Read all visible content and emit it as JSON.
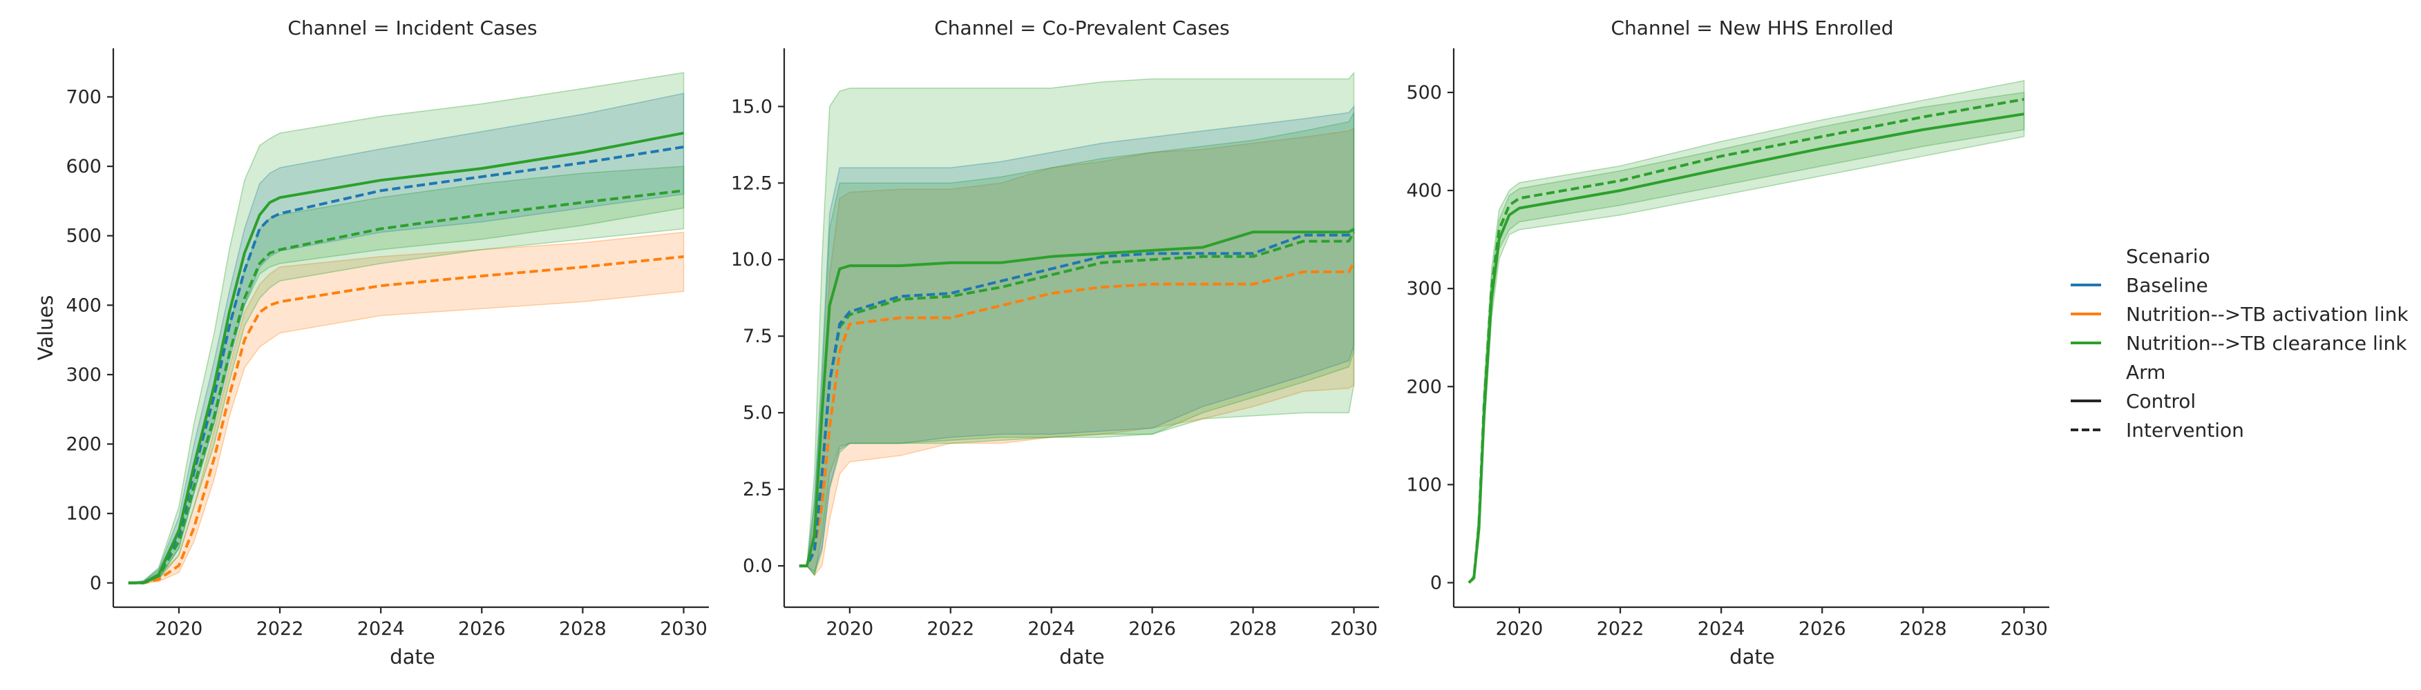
{
  "colors": {
    "baseline": "#1f77b4",
    "activation": "#ff7f0e",
    "clearance": "#2ca02c",
    "axis": "#262626"
  },
  "legend": {
    "scenario_title": "Scenario",
    "scenario_items": [
      {
        "label": "Baseline",
        "color": "#1f77b4"
      },
      {
        "label": "Nutrition-->TB activation link",
        "color": "#ff7f0e"
      },
      {
        "label": "Nutrition-->TB clearance link",
        "color": "#2ca02c"
      }
    ],
    "arm_title": "Arm",
    "arm_items": [
      {
        "label": "Control",
        "dash": "solid"
      },
      {
        "label": "Intervention",
        "dash": "dashed"
      }
    ],
    "placement": "right"
  },
  "chart_data": [
    {
      "type": "line",
      "title": "Channel = Incident Cases",
      "xlabel": "date",
      "ylabel": "Values",
      "xlim": [
        2018.7,
        2030.5
      ],
      "ylim": [
        -35,
        770
      ],
      "xticks": [
        2020,
        2022,
        2024,
        2026,
        2028,
        2030
      ],
      "xtick_labels": [
        "2020",
        "2022",
        "2024",
        "2026",
        "2028",
        "2030"
      ],
      "yticks": [
        0,
        100,
        200,
        300,
        400,
        500,
        600,
        700
      ],
      "ytick_labels": [
        "0",
        "100",
        "200",
        "300",
        "400",
        "500",
        "600",
        "700"
      ],
      "grid": false,
      "series": [
        {
          "scenario": "Nutrition-->TB activation link",
          "arm": "Intervention",
          "x": [
            2019,
            2019.3,
            2019.6,
            2020,
            2020.3,
            2020.7,
            2021,
            2021.3,
            2021.6,
            2021.8,
            2022,
            2024,
            2026,
            2028,
            2030
          ],
          "y": [
            0,
            0,
            5,
            25,
            80,
            180,
            270,
            350,
            390,
            400,
            405,
            428,
            442,
            455,
            470
          ],
          "lower": [
            0,
            0,
            2,
            15,
            60,
            150,
            240,
            310,
            340,
            350,
            360,
            385,
            395,
            405,
            420
          ],
          "upper": [
            0,
            1,
            10,
            40,
            110,
            220,
            310,
            390,
            430,
            445,
            455,
            470,
            480,
            490,
            505
          ]
        },
        {
          "scenario": "Nutrition-->TB clearance link",
          "arm": "Intervention",
          "x": [
            2019,
            2019.3,
            2019.6,
            2020,
            2020.3,
            2020.7,
            2021,
            2021.3,
            2021.6,
            2021.8,
            2022,
            2024,
            2026,
            2028,
            2030
          ],
          "y": [
            0,
            0,
            10,
            60,
            140,
            240,
            330,
            410,
            460,
            475,
            480,
            510,
            530,
            548,
            565
          ],
          "lower": [
            0,
            0,
            5,
            40,
            110,
            200,
            290,
            370,
            410,
            425,
            435,
            460,
            480,
            495,
            510
          ],
          "upper": [
            0,
            2,
            18,
            80,
            170,
            280,
            370,
            450,
            510,
            525,
            530,
            555,
            575,
            590,
            600
          ]
        },
        {
          "scenario": "Baseline",
          "arm": "Intervention",
          "x": [
            2019,
            2019.3,
            2019.6,
            2020,
            2020.3,
            2020.7,
            2021,
            2021.3,
            2021.6,
            2021.8,
            2022,
            2024,
            2026,
            2028,
            2030
          ],
          "y": [
            0,
            0,
            12,
            70,
            160,
            270,
            370,
            450,
            510,
            525,
            532,
            565,
            585,
            605,
            628
          ],
          "lower": [
            0,
            0,
            6,
            50,
            130,
            230,
            320,
            400,
            455,
            470,
            478,
            505,
            520,
            540,
            560
          ],
          "upper": [
            0,
            3,
            20,
            95,
            200,
            320,
            420,
            510,
            575,
            590,
            598,
            625,
            650,
            675,
            705
          ]
        },
        {
          "scenario": "Nutrition-->TB clearance link",
          "arm": "Control",
          "x": [
            2019,
            2019.3,
            2019.6,
            2020,
            2020.3,
            2020.7,
            2021,
            2021.3,
            2021.6,
            2021.8,
            2022,
            2024,
            2026,
            2028,
            2030
          ],
          "y": [
            0,
            0,
            12,
            75,
            170,
            285,
            390,
            475,
            530,
            548,
            555,
            580,
            597,
            620,
            648
          ],
          "lower": [
            0,
            0,
            6,
            50,
            130,
            230,
            330,
            400,
            445,
            455,
            460,
            480,
            495,
            515,
            540
          ],
          "upper": [
            0,
            3,
            22,
            110,
            230,
            360,
            480,
            580,
            630,
            640,
            648,
            672,
            690,
            712,
            735
          ]
        }
      ]
    },
    {
      "type": "line",
      "title": "Channel = Co-Prevalent Cases",
      "xlabel": "date",
      "ylabel": "",
      "xlim": [
        2018.7,
        2030.5
      ],
      "ylim": [
        -1.35,
        16.9
      ],
      "xticks": [
        2020,
        2022,
        2024,
        2026,
        2028,
        2030
      ],
      "xtick_labels": [
        "2020",
        "2022",
        "2024",
        "2026",
        "2028",
        "2030"
      ],
      "yticks": [
        0,
        2.5,
        5,
        7.5,
        10,
        12.5,
        15
      ],
      "ytick_labels": [
        "0.0",
        "2.5",
        "5.0",
        "7.5",
        "10.0",
        "12.5",
        "15.0"
      ],
      "grid": false,
      "series": [
        {
          "scenario": "Nutrition-->TB activation link",
          "arm": "Intervention",
          "x": [
            2019,
            2019.15,
            2019.3,
            2019.45,
            2019.6,
            2019.8,
            2020,
            2021,
            2022,
            2023,
            2024,
            2025,
            2026,
            2027,
            2028,
            2029,
            2029.9,
            2030
          ],
          "y": [
            0,
            0,
            0.5,
            2,
            4.5,
            7,
            7.9,
            8.1,
            8.1,
            8.5,
            8.9,
            9.1,
            9.2,
            9.2,
            9.2,
            9.6,
            9.6,
            9.9
          ],
          "lower": [
            0,
            0,
            -0.3,
            0,
            1.5,
            3,
            3.4,
            3.6,
            4.0,
            4.0,
            4.2,
            4.3,
            4.5,
            4.8,
            5.2,
            5.7,
            5.8,
            5.9
          ],
          "upper": [
            0,
            0,
            1.5,
            5,
            9.5,
            12,
            12.2,
            12.3,
            12.3,
            12.5,
            13.0,
            13.2,
            13.5,
            13.6,
            13.8,
            14.0,
            14.2,
            14.3
          ]
        },
        {
          "scenario": "Nutrition-->TB clearance link",
          "arm": "Intervention",
          "x": [
            2019,
            2019.15,
            2019.3,
            2019.45,
            2019.6,
            2019.8,
            2020,
            2021,
            2022,
            2023,
            2024,
            2025,
            2026,
            2027,
            2028,
            2029,
            2029.9,
            2030
          ],
          "y": [
            0,
            0,
            0.5,
            3,
            6,
            7.8,
            8.2,
            8.7,
            8.8,
            9.1,
            9.5,
            9.9,
            10.0,
            10.1,
            10.1,
            10.6,
            10.6,
            10.9
          ],
          "lower": [
            0,
            0,
            -0.3,
            0.5,
            2.5,
            3.7,
            4.0,
            4.0,
            4.1,
            4.2,
            4.2,
            4.2,
            4.3,
            5.0,
            5.5,
            6.0,
            6.5,
            7.0
          ],
          "upper": [
            0,
            0,
            2,
            6,
            11,
            12.5,
            12.5,
            12.5,
            12.5,
            12.7,
            13.0,
            13.3,
            13.5,
            13.7,
            13.9,
            14.2,
            14.5,
            14.8
          ]
        },
        {
          "scenario": "Baseline",
          "arm": "Intervention",
          "x": [
            2019,
            2019.15,
            2019.3,
            2019.45,
            2019.6,
            2019.8,
            2020,
            2021,
            2022,
            2023,
            2024,
            2025,
            2026,
            2027,
            2028,
            2029,
            2029.9,
            2030
          ],
          "y": [
            0,
            0,
            0.5,
            3,
            6,
            7.9,
            8.3,
            8.8,
            8.9,
            9.3,
            9.7,
            10.1,
            10.2,
            10.2,
            10.2,
            10.8,
            10.8,
            11.0
          ],
          "lower": [
            0,
            0,
            -0.2,
            0.6,
            2.6,
            3.8,
            4.0,
            4.0,
            4.2,
            4.3,
            4.3,
            4.4,
            4.5,
            5.2,
            5.7,
            6.2,
            6.7,
            7.2
          ],
          "upper": [
            0,
            0,
            2.2,
            6.5,
            11.5,
            13,
            13.0,
            13.0,
            13.0,
            13.2,
            13.5,
            13.8,
            14.0,
            14.2,
            14.4,
            14.6,
            14.8,
            15.0
          ]
        },
        {
          "scenario": "Nutrition-->TB clearance link",
          "arm": "Control",
          "x": [
            2019,
            2019.15,
            2019.3,
            2019.45,
            2019.6,
            2019.8,
            2020,
            2021,
            2022,
            2023,
            2024,
            2025,
            2026,
            2027,
            2028,
            2029,
            2029.9,
            2030
          ],
          "y": [
            0,
            0,
            1,
            5,
            8.5,
            9.7,
            9.8,
            9.8,
            9.9,
            9.9,
            10.1,
            10.2,
            10.3,
            10.4,
            10.9,
            10.9,
            10.9,
            11.0
          ],
          "lower": [
            0,
            0,
            -0.3,
            1,
            3,
            3.9,
            4.0,
            4.0,
            4.0,
            4.1,
            4.2,
            4.3,
            4.3,
            4.8,
            4.9,
            5.0,
            5.0,
            5.9
          ],
          "upper": [
            0,
            0,
            3,
            10,
            15,
            15.5,
            15.6,
            15.6,
            15.6,
            15.6,
            15.6,
            15.8,
            15.9,
            15.9,
            15.9,
            15.9,
            15.9,
            16.1
          ]
        }
      ]
    },
    {
      "type": "line",
      "title": "Channel = New HHS Enrolled",
      "xlabel": "date",
      "ylabel": "",
      "xlim": [
        2018.7,
        2030.5
      ],
      "ylim": [
        -25,
        545
      ],
      "xticks": [
        2020,
        2022,
        2024,
        2026,
        2028,
        2030
      ],
      "xtick_labels": [
        "2020",
        "2022",
        "2024",
        "2026",
        "2028",
        "2030"
      ],
      "yticks": [
        0,
        100,
        200,
        300,
        400,
        500
      ],
      "ytick_labels": [
        "0",
        "100",
        "200",
        "300",
        "400",
        "500"
      ],
      "grid": false,
      "series": [
        {
          "scenario": "Nutrition-->TB clearance link",
          "arm": "Intervention",
          "x": [
            2019,
            2019.1,
            2019.2,
            2019.3,
            2019.45,
            2019.6,
            2019.8,
            2020,
            2022,
            2024,
            2026,
            2028,
            2030
          ],
          "y": [
            0,
            5,
            60,
            180,
            300,
            360,
            385,
            392,
            410,
            435,
            455,
            475,
            493
          ],
          "lower": [
            0,
            3,
            50,
            160,
            280,
            340,
            360,
            368,
            385,
            405,
            425,
            445,
            462
          ],
          "upper": [
            0,
            8,
            75,
            200,
            320,
            380,
            400,
            408,
            425,
            450,
            472,
            492,
            512
          ]
        },
        {
          "scenario": "Nutrition-->TB clearance link",
          "arm": "Control",
          "x": [
            2019,
            2019.1,
            2019.2,
            2019.3,
            2019.45,
            2019.6,
            2019.8,
            2020,
            2022,
            2024,
            2026,
            2028,
            2030
          ],
          "y": [
            0,
            5,
            55,
            170,
            290,
            350,
            375,
            382,
            400,
            422,
            443,
            462,
            478
          ],
          "lower": [
            0,
            3,
            45,
            150,
            270,
            330,
            355,
            360,
            375,
            395,
            415,
            435,
            455
          ],
          "upper": [
            0,
            8,
            70,
            190,
            310,
            370,
            395,
            402,
            420,
            442,
            465,
            485,
            500
          ]
        }
      ]
    }
  ]
}
